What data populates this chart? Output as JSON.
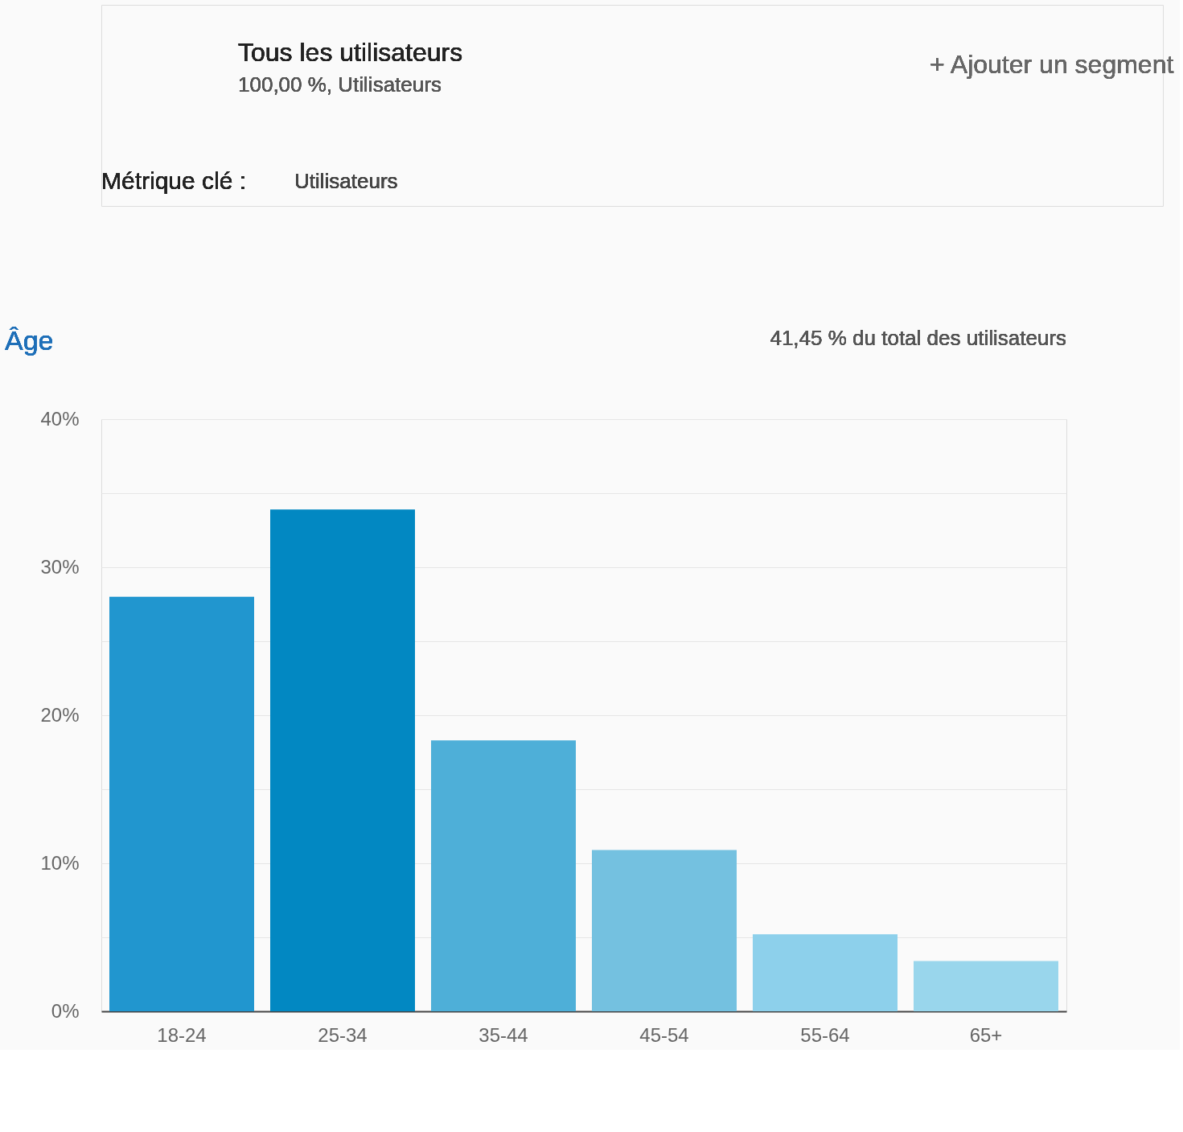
{
  "chart_data": {
    "type": "bar",
    "title": "Âge",
    "subtitle": "41,45 % du total des utilisateurs",
    "annotations": [
      "Tous les utilisateurs",
      "100,00 %, Utilisateurs",
      "+ Ajouter un segment",
      "Métrique clé :",
      "Utilisateurs"
    ],
    "categories": [
      "18-24",
      "25-34",
      "35-44",
      "45-54",
      "55-64",
      "65+"
    ],
    "values": [
      28.0,
      33.9,
      18.3,
      10.9,
      5.2,
      3.4
    ],
    "colors": [
      "#2196cf",
      "#0288c2",
      "#4eafd8",
      "#74c1e0",
      "#8dd0eb",
      "#99d6ec"
    ],
    "ylim": [
      0,
      40
    ],
    "yticks": [
      {
        "value": 0,
        "label": "0%"
      },
      {
        "value": 5,
        "label": null
      },
      {
        "value": 10,
        "label": "10%"
      },
      {
        "value": 15,
        "label": null
      },
      {
        "value": 20,
        "label": "20%"
      },
      {
        "value": 25,
        "label": null
      },
      {
        "value": 30,
        "label": "30%"
      },
      {
        "value": 35,
        "label": null
      },
      {
        "value": 40,
        "label": "40%"
      }
    ],
    "grid": "y",
    "legend": false
  }
}
